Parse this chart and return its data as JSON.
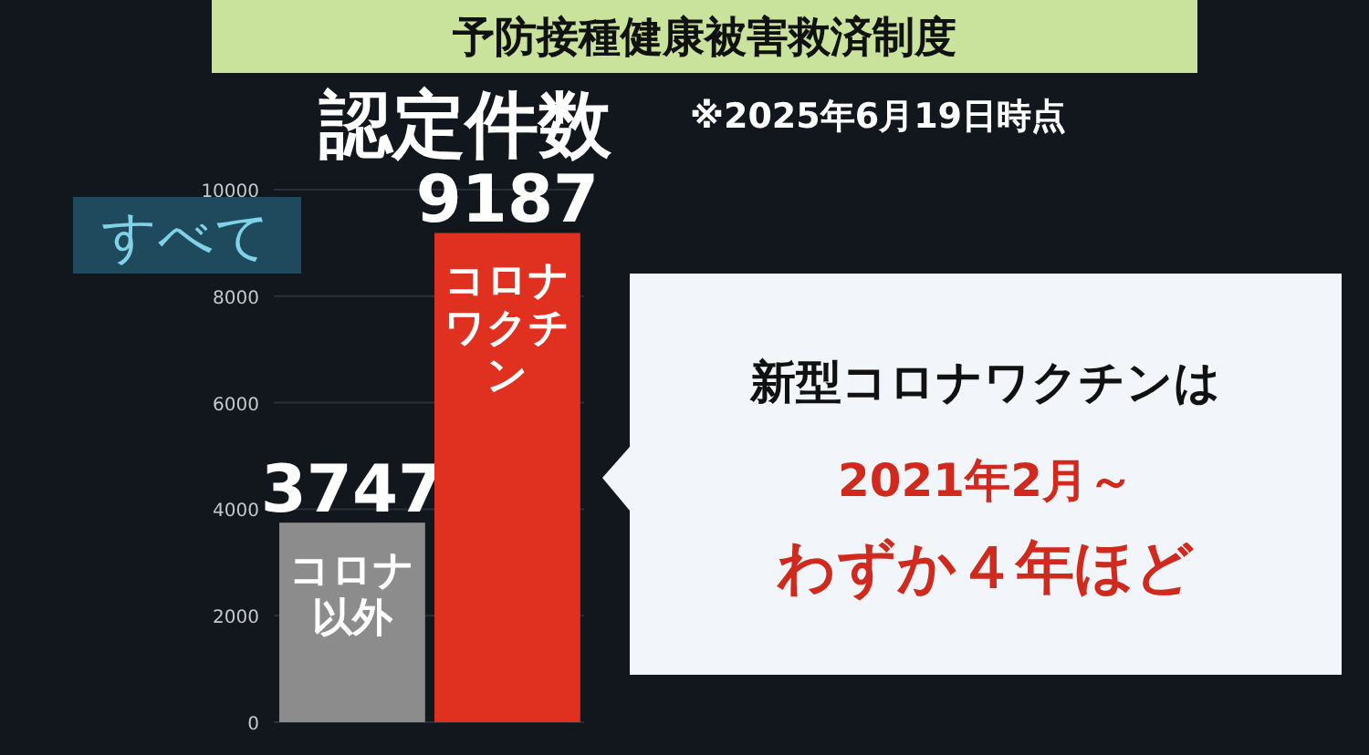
{
  "chart_data": {
    "type": "bar",
    "title": "予防接種健康被害救済制度",
    "subtitle": "認定件数",
    "categories": [
      "コロナ以外",
      "コロナワクチン"
    ],
    "values": [
      3747,
      9187
    ],
    "colors": [
      "#8c8c8c",
      "#e03020"
    ],
    "ylim": [
      0,
      10000
    ],
    "yticks": [
      0,
      2000,
      4000,
      6000,
      8000,
      10000
    ],
    "grid": "y",
    "data_labels": true,
    "annotations": [
      "※2025年6月19日時点",
      "すべて",
      "新型コロナワクチンは",
      "2021年2月～",
      "わずか４年ほど"
    ]
  }
}
